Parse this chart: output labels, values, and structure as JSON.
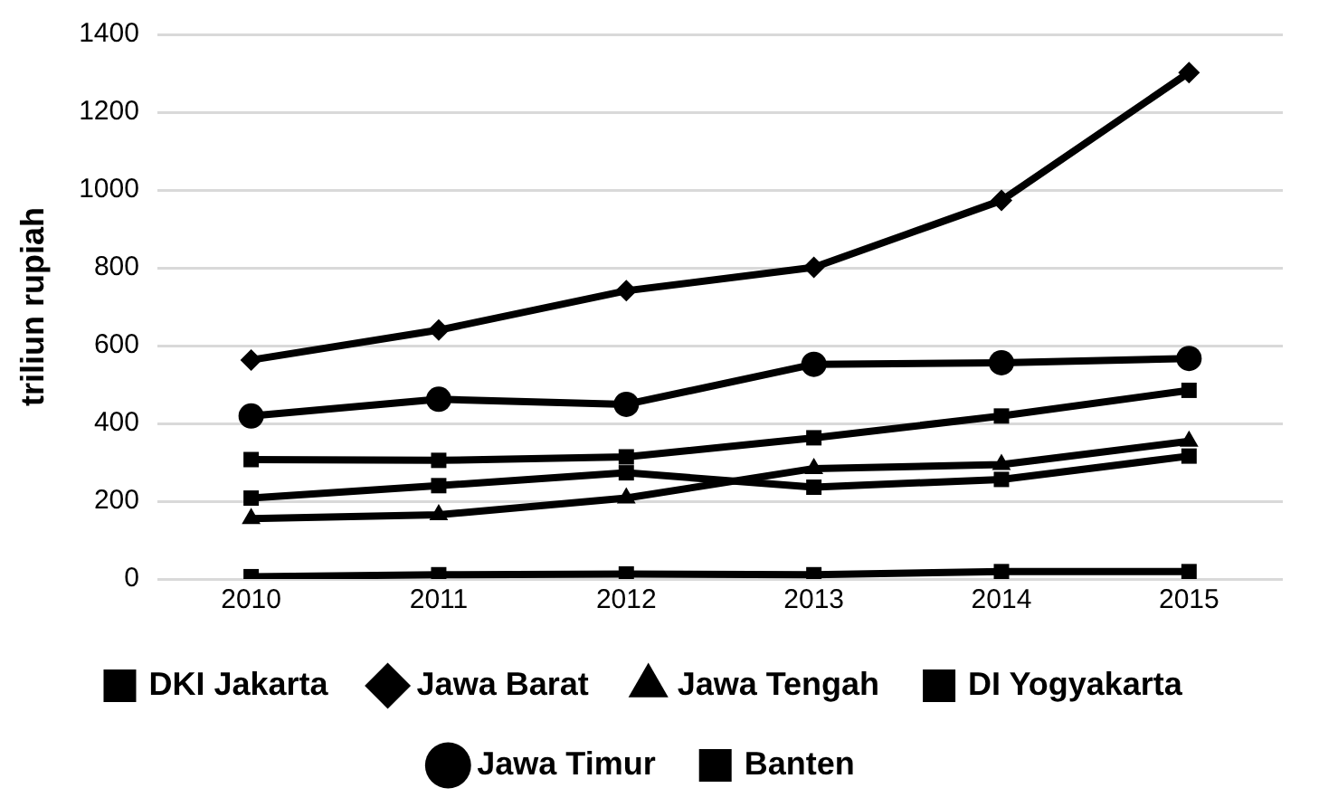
{
  "chart_data": {
    "type": "line",
    "ylabel": "triliun rupiah",
    "categories": [
      "2010",
      "2011",
      "2012",
      "2013",
      "2014",
      "2015"
    ],
    "ylim": [
      0,
      1400
    ],
    "yticks": [
      0,
      200,
      400,
      600,
      800,
      1000,
      1200,
      1400
    ],
    "grid": "y",
    "legend": "bottom",
    "line_style": "solid",
    "series": [
      {
        "name": "DKI Jakarta",
        "color": "#000000",
        "marker": "square",
        "values": [
          208,
          240,
          273,
          236,
          256,
          316
        ]
      },
      {
        "name": "Jawa Barat",
        "color": "#000000",
        "marker": "diamond",
        "values": [
          563,
          640,
          741,
          801,
          973,
          1302
        ]
      },
      {
        "name": "Jawa Tengah",
        "color": "#000000",
        "marker": "triangle",
        "values": [
          155,
          165,
          208,
          284,
          294,
          354
        ]
      },
      {
        "name": "DI Yogyakarta",
        "color": "#000000",
        "marker": "square",
        "values": [
          6,
          11,
          13,
          11,
          19,
          19
        ]
      },
      {
        "name": "Jawa Timur",
        "color": "#000000",
        "marker": "circle",
        "values": [
          419,
          462,
          449,
          552,
          556,
          567
        ]
      },
      {
        "name": "Banten",
        "color": "#000000",
        "marker": "square",
        "values": [
          307,
          305,
          314,
          363,
          419,
          485
        ]
      }
    ]
  }
}
